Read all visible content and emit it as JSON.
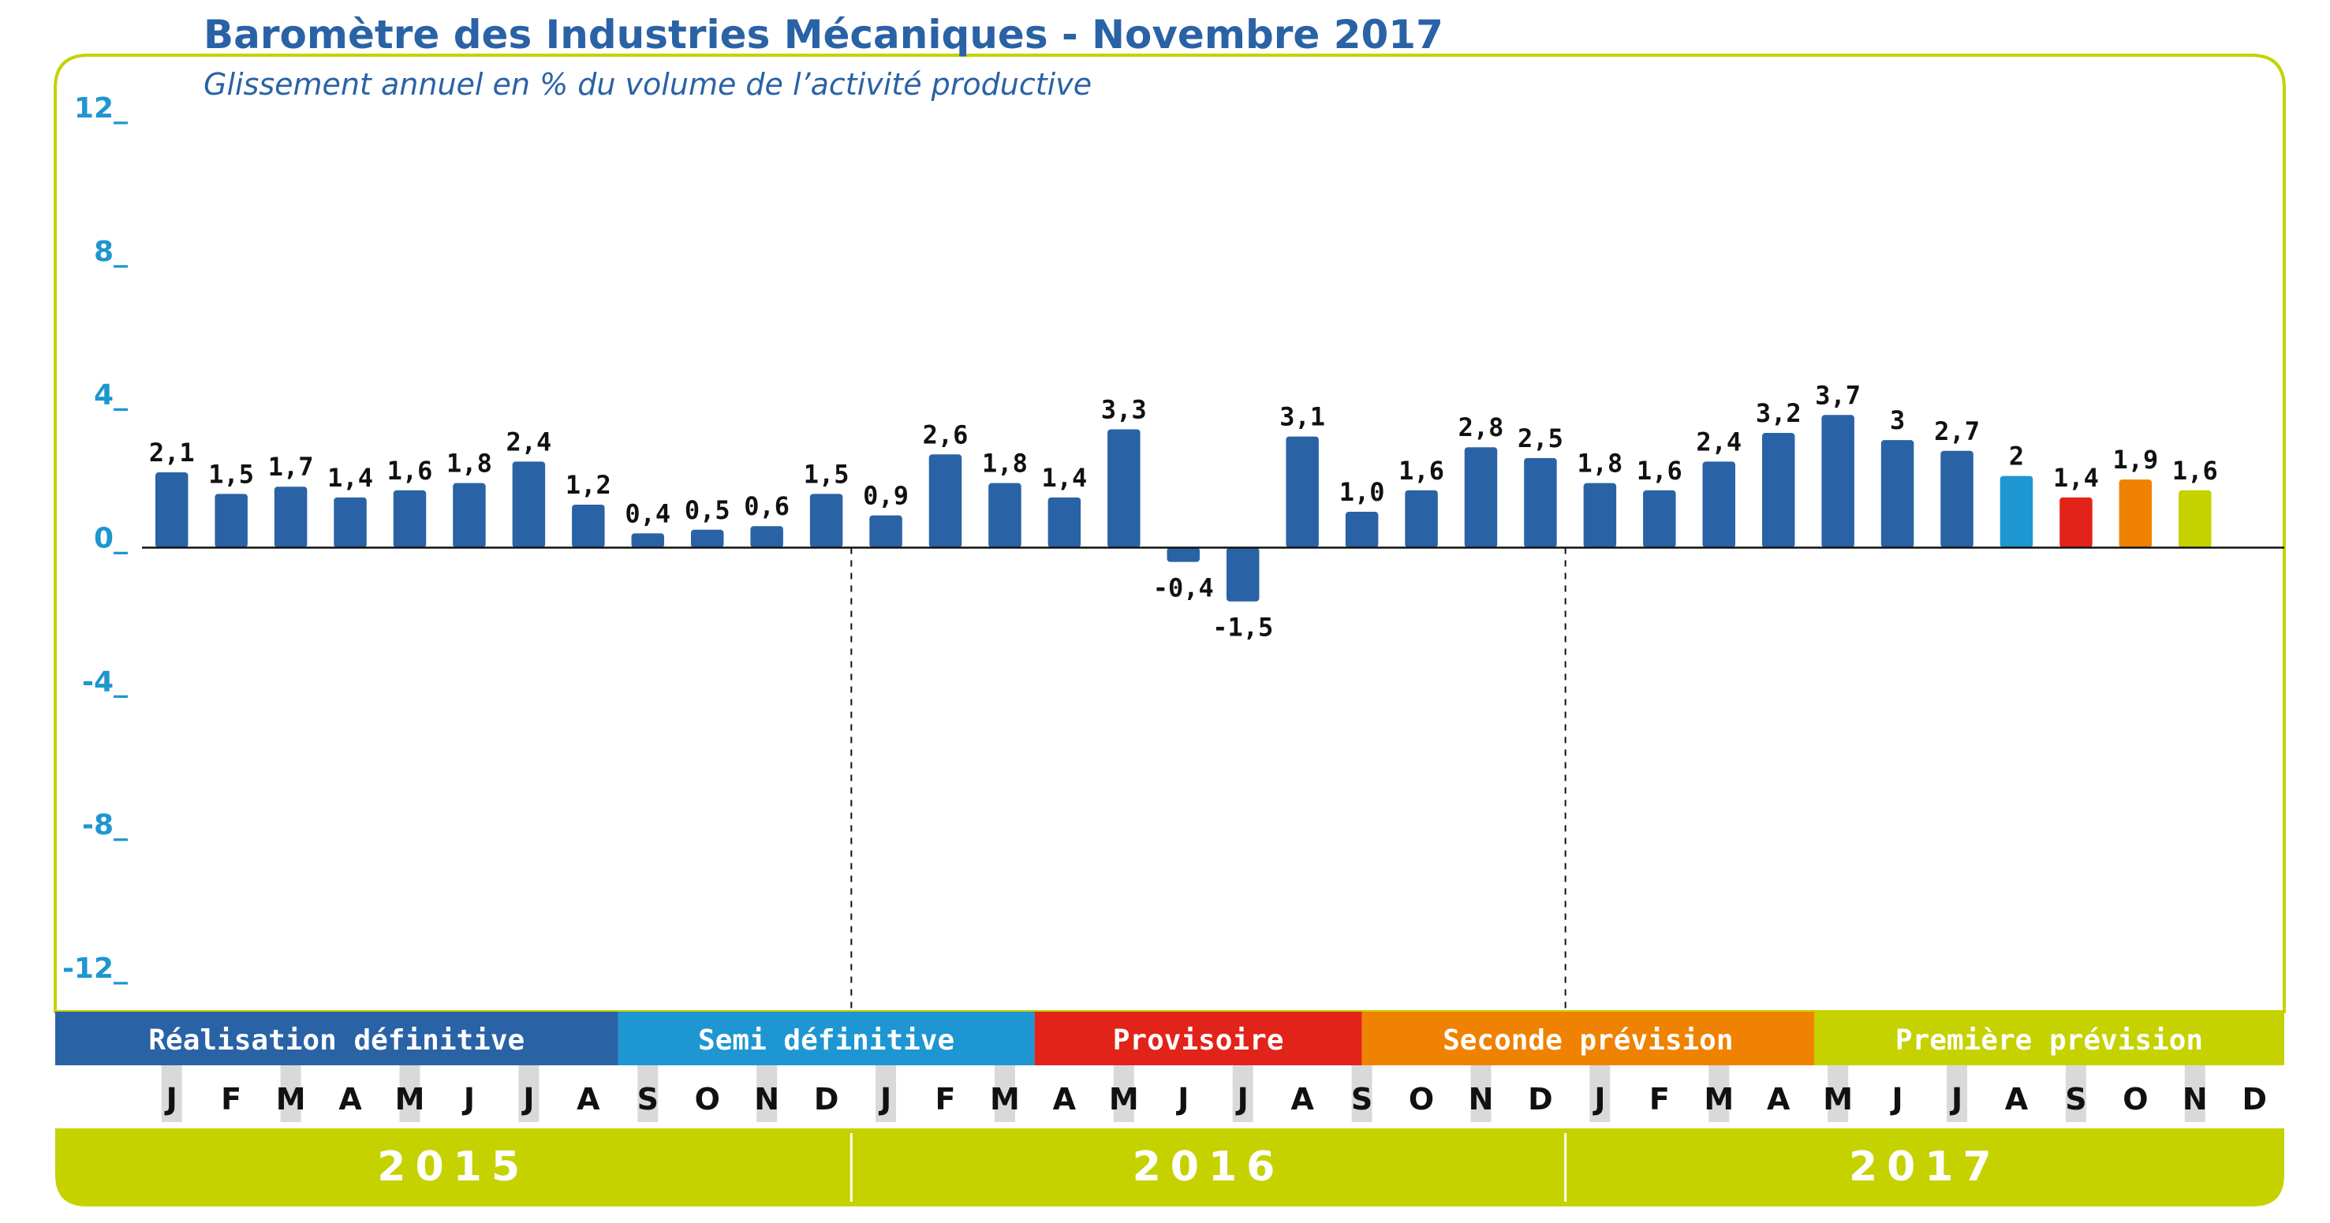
{
  "chart_data": {
    "type": "bar",
    "title": "Baromètre des Industries Mécaniques - Novembre 2017",
    "subtitle": "Glissement annuel en % du volume de l’activité productive",
    "ylim": [
      -12,
      12
    ],
    "yticks": [
      {
        "value": 12,
        "label": "12_"
      },
      {
        "value": 8,
        "label": "8_"
      },
      {
        "value": 4,
        "label": "4_"
      },
      {
        "value": 0,
        "label": "0_"
      },
      {
        "value": -4,
        "label": "-4_"
      },
      {
        "value": -8,
        "label": "-8_"
      },
      {
        "value": -12,
        "label": "-12_"
      }
    ],
    "categories": [
      "J",
      "F",
      "M",
      "A",
      "M",
      "J",
      "J",
      "A",
      "S",
      "O",
      "N",
      "D",
      "J",
      "F",
      "M",
      "A",
      "M",
      "J",
      "J",
      "A",
      "S",
      "O",
      "N",
      "D",
      "J",
      "F",
      "M",
      "A",
      "M",
      "J",
      "J",
      "A",
      "S",
      "O",
      "N",
      "D"
    ],
    "values": [
      2.1,
      1.5,
      1.7,
      1.4,
      1.6,
      1.8,
      2.4,
      1.2,
      0.4,
      0.5,
      0.6,
      1.5,
      0.9,
      2.6,
      1.8,
      1.4,
      3.3,
      -0.4,
      -1.5,
      3.1,
      1.0,
      1.6,
      2.8,
      2.5,
      1.8,
      1.6,
      2.4,
      3.2,
      3.7,
      3.0,
      2.7,
      2.0,
      1.4,
      1.9,
      1.6,
      null
    ],
    "value_labels": [
      "2,1",
      "1,5",
      "1,7",
      "1,4",
      "1,6",
      "1,8",
      "2,4",
      "1,2",
      "0,4",
      "0,5",
      "0,6",
      "1,5",
      "0,9",
      "2,6",
      "1,8",
      "1,4",
      "3,3",
      "-0,4",
      "-1,5",
      "3,1",
      "1,0",
      "1,6",
      "2,8",
      "2,5",
      "1,8",
      "1,6",
      "2,4",
      "3,2",
      "3,7",
      "3",
      "2,7",
      "2",
      "1,4",
      "1,9",
      "1,6",
      ""
    ],
    "bar_colors": [
      "#2a62a6",
      "#2a62a6",
      "#2a62a6",
      "#2a62a6",
      "#2a62a6",
      "#2a62a6",
      "#2a62a6",
      "#2a62a6",
      "#2a62a6",
      "#2a62a6",
      "#2a62a6",
      "#2a62a6",
      "#2a62a6",
      "#2a62a6",
      "#2a62a6",
      "#2a62a6",
      "#2a62a6",
      "#2a62a6",
      "#2a62a6",
      "#2a62a6",
      "#2a62a6",
      "#2a62a6",
      "#2a62a6",
      "#2a62a6",
      "#2a62a6",
      "#2a62a6",
      "#2a62a6",
      "#2a62a6",
      "#2a62a6",
      "#2a62a6",
      "#2a62a6",
      "#1e96d2",
      "#e2231a",
      "#ef8200",
      "#c5d200",
      null
    ],
    "years": [
      {
        "label": "2015",
        "start": 0,
        "end": 12
      },
      {
        "label": "2016",
        "start": 12,
        "end": 24
      },
      {
        "label": "2017",
        "start": 24,
        "end": 36
      }
    ],
    "phases": [
      {
        "label": "Réalisation définitive",
        "start": 0,
        "end": 8,
        "color": "#2a62a6"
      },
      {
        "label": "Semi définitive",
        "start": 8,
        "end": 15,
        "color": "#1e96d2"
      },
      {
        "label": "Provisoire",
        "start": 15,
        "end": 20.5,
        "color": "#e2231a"
      },
      {
        "label": "Seconde prévision",
        "start": 20.5,
        "end": 28.1,
        "color": "#ef8200"
      },
      {
        "label": "Première prévision",
        "start": 28.1,
        "end": 36,
        "color": "#c5d200"
      }
    ]
  },
  "colors": {
    "frame": "#c5d200",
    "grey_band": "#d9d9d9",
    "year_band": "#c5d200"
  }
}
